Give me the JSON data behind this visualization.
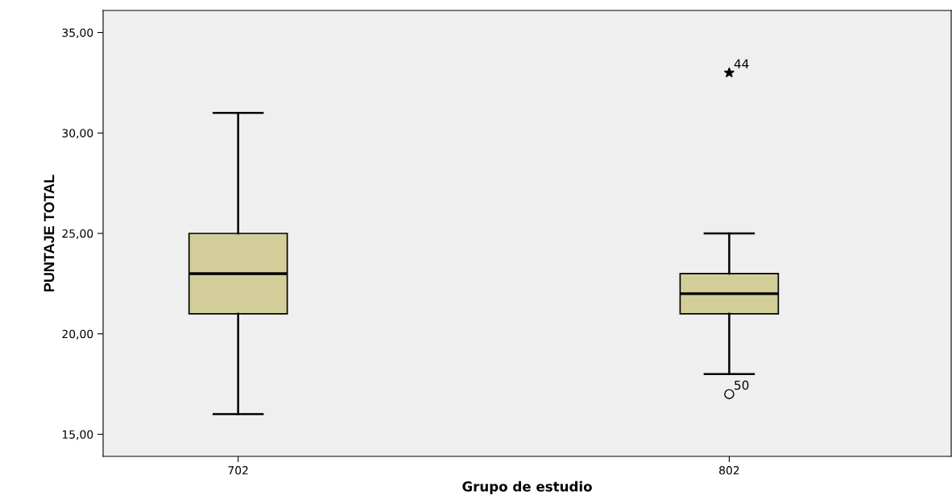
{
  "chart_data": {
    "type": "box",
    "xlabel": "Grupo de estudio",
    "ylabel": "PUNTAJE TOTAL",
    "categories": [
      "702",
      "802"
    ],
    "series": [
      {
        "color": "#d3cd9a",
        "boxes": [
          {
            "low": 16,
            "q1": 21,
            "median": 23,
            "q3": 25,
            "high": 31
          },
          {
            "low": 18,
            "q1": 21,
            "median": 22,
            "q3": 23,
            "high": 25,
            "outliers": [
              33,
              17
            ]
          }
        ]
      }
    ],
    "ylim": [
      13.9,
      36.1
    ],
    "yticks": [
      {
        "value": 15,
        "label": "15,00"
      },
      {
        "value": 20,
        "label": "20,00"
      },
      {
        "value": 25,
        "label": "25,00"
      },
      {
        "value": 30,
        "label": "30,00"
      },
      {
        "value": 35,
        "label": "35,00"
      }
    ],
    "grid": false,
    "annotations": [
      "44",
      "50"
    ]
  }
}
